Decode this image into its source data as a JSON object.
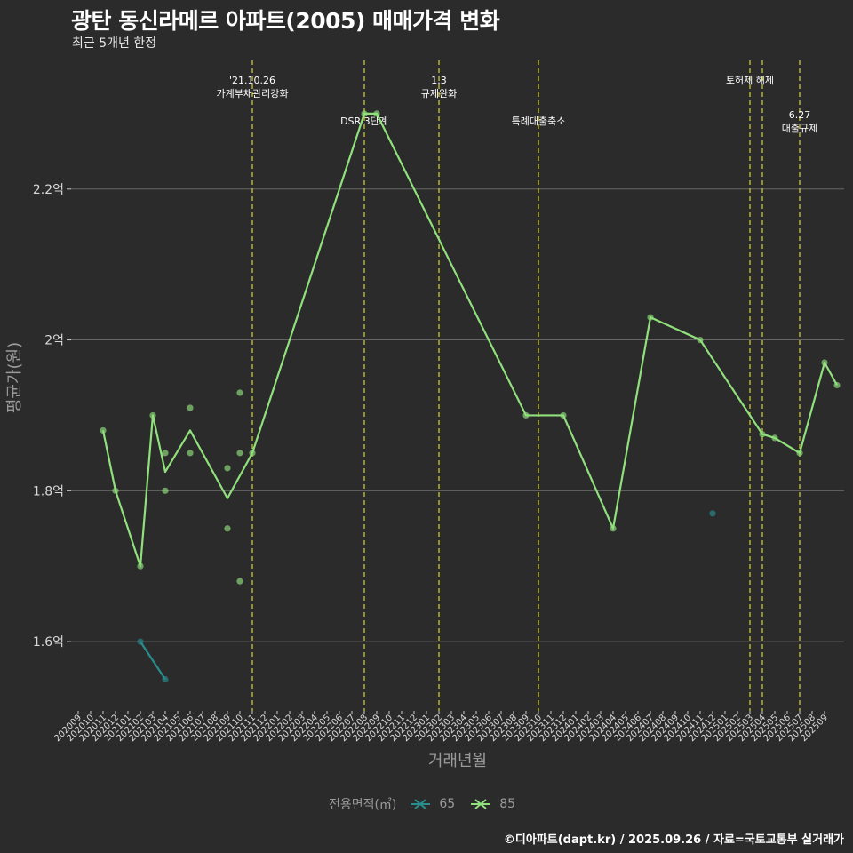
{
  "title": "광탄 동신라메르 아파트(2005) 매매가격 변화",
  "subtitle": "최근 5개년 한정",
  "caption": "©디아파트(dapt.kr) / 2025.09.26 / 자료=국토교통부 실거래가",
  "legend": {
    "title": "전용면적(㎡)",
    "items": [
      {
        "label": "65",
        "color": "#2a8c8c"
      },
      {
        "label": "85",
        "color": "#90e07c"
      }
    ]
  },
  "chart_data": {
    "type": "line",
    "title": "광탄 동신라메르 아파트(2005) 매매가격 변화",
    "xlabel": "거래년월",
    "ylabel": "평균가(원)",
    "ylim": [
      1.52,
      2.38
    ],
    "yticks": [
      {
        "value": 1.6,
        "label": "1.6억"
      },
      {
        "value": 1.8,
        "label": "1.8억"
      },
      {
        "value": 2.0,
        "label": "2억"
      },
      {
        "value": 2.2,
        "label": "2.2억"
      }
    ],
    "categories": [
      "202009",
      "202010",
      "202011",
      "202012",
      "202101",
      "202102",
      "202103",
      "202104",
      "202105",
      "202106",
      "202107",
      "202108",
      "202109",
      "202110",
      "202111",
      "202112",
      "202201",
      "202202",
      "202203",
      "202204",
      "202205",
      "202206",
      "202207",
      "202208",
      "202209",
      "202210",
      "202211",
      "202212",
      "202301",
      "202302",
      "202303",
      "202304",
      "202305",
      "202306",
      "202307",
      "202308",
      "202309",
      "202310",
      "202311",
      "202312",
      "202401",
      "202402",
      "202403",
      "202404",
      "202405",
      "202406",
      "202407",
      "202408",
      "202409",
      "202410",
      "202411",
      "202412",
      "202501",
      "202502",
      "202503",
      "202504",
      "202505",
      "202506",
      "202507",
      "202508",
      "202509"
    ],
    "series": [
      {
        "name": "65",
        "color": "#2a8c8c",
        "line": [
          {
            "x": "202102",
            "y": 1.6
          },
          {
            "x": "202104",
            "y": 1.55
          }
        ],
        "points": [
          {
            "x": "202102",
            "y": 1.6
          },
          {
            "x": "202104",
            "y": 1.55
          },
          {
            "x": "202412",
            "y": 1.77
          }
        ]
      },
      {
        "name": "85",
        "color": "#90e07c",
        "line": [
          {
            "x": "202011",
            "y": 1.88
          },
          {
            "x": "202012",
            "y": 1.8
          },
          {
            "x": "202102",
            "y": 1.7
          },
          {
            "x": "202103",
            "y": 1.9
          },
          {
            "x": "202104",
            "y": 1.825
          },
          {
            "x": "202106",
            "y": 1.88
          },
          {
            "x": "202109",
            "y": 1.79
          },
          {
            "x": "202111",
            "y": 1.85
          },
          {
            "x": "202208",
            "y": 2.3
          },
          {
            "x": "202209",
            "y": 2.3
          },
          {
            "x": "202309",
            "y": 1.9
          },
          {
            "x": "202312",
            "y": 1.9
          },
          {
            "x": "202404",
            "y": 1.75
          },
          {
            "x": "202407",
            "y": 2.03
          },
          {
            "x": "202411",
            "y": 2.0
          },
          {
            "x": "202504",
            "y": 1.875
          },
          {
            "x": "202505",
            "y": 1.87
          },
          {
            "x": "202507",
            "y": 1.85
          },
          {
            "x": "202509",
            "y": 1.97
          },
          {
            "x": "202510",
            "y": 1.94
          }
        ],
        "points": [
          {
            "x": "202011",
            "y": 1.88
          },
          {
            "x": "202012",
            "y": 1.8
          },
          {
            "x": "202102",
            "y": 1.7
          },
          {
            "x": "202103",
            "y": 1.9
          },
          {
            "x": "202104",
            "y": 1.85
          },
          {
            "x": "202104",
            "y": 1.8
          },
          {
            "x": "202106",
            "y": 1.91
          },
          {
            "x": "202106",
            "y": 1.85
          },
          {
            "x": "202109",
            "y": 1.83
          },
          {
            "x": "202109",
            "y": 1.75
          },
          {
            "x": "202110",
            "y": 1.93
          },
          {
            "x": "202110",
            "y": 1.85
          },
          {
            "x": "202110",
            "y": 1.68
          },
          {
            "x": "202111",
            "y": 1.85
          },
          {
            "x": "202208",
            "y": 2.3
          },
          {
            "x": "202209",
            "y": 2.3
          },
          {
            "x": "202309",
            "y": 1.9
          },
          {
            "x": "202312",
            "y": 1.9
          },
          {
            "x": "202404",
            "y": 1.75
          },
          {
            "x": "202407",
            "y": 2.03
          },
          {
            "x": "202411",
            "y": 2.0
          },
          {
            "x": "202504",
            "y": 1.875
          },
          {
            "x": "202505",
            "y": 1.87
          },
          {
            "x": "202507",
            "y": 1.85
          },
          {
            "x": "202509",
            "y": 1.97
          },
          {
            "x": "202510",
            "y": 1.94
          }
        ]
      }
    ],
    "events": [
      {
        "x": "202111",
        "lines": [
          "'21.10.26",
          "가계부채관리강화"
        ],
        "row": 0
      },
      {
        "x": "202208",
        "lines": [
          "DSR 3단계"
        ],
        "row": 1
      },
      {
        "x": "202302",
        "lines": [
          "1.3",
          "규제완화"
        ],
        "row": 0
      },
      {
        "x": "202310",
        "lines": [
          "특례대출축소"
        ],
        "row": 1
      },
      {
        "x": "202503",
        "lines": [
          "토허제 해제"
        ],
        "row": 0
      },
      {
        "x": "202504",
        "lines": [],
        "row": 0
      },
      {
        "x": "202507",
        "lines": [
          "6.27",
          "대출규제"
        ],
        "row": 2
      }
    ]
  }
}
